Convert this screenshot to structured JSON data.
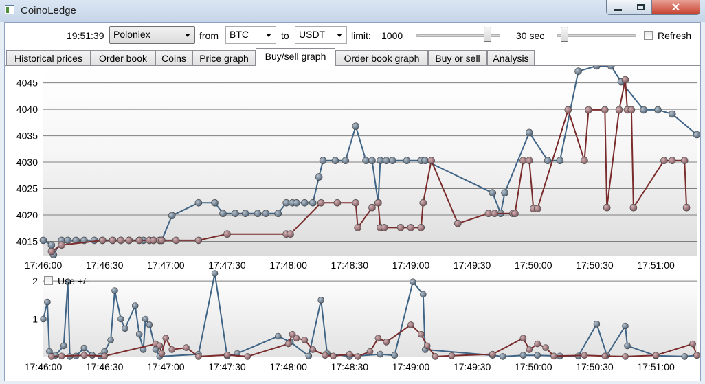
{
  "window": {
    "title": "CoinoLedge",
    "close_glyph": "✕"
  },
  "toolbar": {
    "time": "19:51:39",
    "exchange": "Poloniex",
    "from_label": "from",
    "from_value": "BTC",
    "to_label": "to",
    "to_value": "USDT",
    "limit_label": "limit:",
    "limit_value": "1000",
    "limit_slider_fraction": 0.88,
    "interval_value": "30 sec",
    "interval_slider_fraction": 0.05,
    "refresh_label": "Refresh",
    "refresh_checked": false
  },
  "tabs": [
    {
      "label": "Historical prices",
      "active": false
    },
    {
      "label": "Order book",
      "active": false
    },
    {
      "label": "Coins",
      "active": false
    },
    {
      "label": "Price graph",
      "active": false
    },
    {
      "label": "Buy/sell graph",
      "active": true
    },
    {
      "label": "Order book graph",
      "active": false
    },
    {
      "label": "Buy or sell",
      "active": false
    },
    {
      "label": "Analysis",
      "active": false
    }
  ],
  "colors": {
    "buy": "#3f6485",
    "sell": "#7a2b2b",
    "buy_point": "#6f8092",
    "sell_point": "#9a6f73"
  },
  "use_pm_label": "Use +/-",
  "use_pm_checked": false,
  "chart_data": [
    {
      "type": "line",
      "x_start": "17:46:00",
      "x_end": "17:51:20",
      "x_tick_labels": [
        "17:46:00",
        "17:46:30",
        "17:47:00",
        "17:47:30",
        "17:48:00",
        "17:48:30",
        "17:49:00",
        "17:49:30",
        "17:50:00",
        "17:50:30",
        "17:51:00"
      ],
      "y_ticks": [
        4015,
        4020,
        4025,
        4030,
        4035,
        4040,
        4045
      ],
      "ylim": [
        4012.2,
        4048.2
      ],
      "grid": true,
      "series": [
        {
          "color": "buy",
          "points": [
            [
              "17:46:00",
              4015.2
            ],
            [
              "17:46:04",
              4014.3
            ],
            [
              "17:46:05",
              4012.5
            ],
            [
              "17:46:09",
              4015.2
            ],
            [
              "17:46:12",
              4015.2
            ],
            [
              "17:46:16",
              4015.2
            ],
            [
              "17:46:20",
              4015.2
            ],
            [
              "17:46:25",
              4015.2
            ],
            [
              "17:46:29",
              4015.2
            ],
            [
              "17:46:34",
              4015.2
            ],
            [
              "17:46:38",
              4015.2
            ],
            [
              "17:46:42",
              4015.2
            ],
            [
              "17:46:47",
              4015.2
            ],
            [
              "17:46:49",
              4015.2
            ],
            [
              "17:46:52",
              4015.2
            ],
            [
              "17:46:54",
              4015.2
            ],
            [
              "17:46:57",
              4015.2
            ],
            [
              "17:46:58",
              4015.2
            ],
            [
              "17:47:03",
              4019.9
            ],
            [
              "17:47:16",
              4022.3
            ],
            [
              "17:47:24",
              4022.3
            ],
            [
              "17:47:28",
              4020.3
            ],
            [
              "17:47:34",
              4020.3
            ],
            [
              "17:47:39",
              4020.3
            ],
            [
              "17:47:45",
              4020.3
            ],
            [
              "17:47:49",
              4020.3
            ],
            [
              "17:47:55",
              4020.3
            ],
            [
              "17:47:59",
              4022.3
            ],
            [
              "17:48:02",
              4022.3
            ],
            [
              "17:48:04",
              4022.3
            ],
            [
              "17:48:08",
              4022.3
            ],
            [
              "17:48:12",
              4022.3
            ],
            [
              "17:48:15",
              4027.2
            ],
            [
              "17:48:17",
              4030.3
            ],
            [
              "17:48:23",
              4030.3
            ],
            [
              "17:48:28",
              4030.3
            ],
            [
              "17:48:33",
              4036.8
            ],
            [
              "17:48:38",
              4030.3
            ],
            [
              "17:48:41",
              4030.3
            ],
            [
              "17:48:44",
              4022.3
            ],
            [
              "17:48:45",
              4030.3
            ],
            [
              "17:48:48",
              4030.3
            ],
            [
              "17:48:51",
              4030.3
            ],
            [
              "17:48:58",
              4030.3
            ],
            [
              "17:49:05",
              4030.3
            ],
            [
              "17:49:07",
              4030.3
            ],
            [
              "17:49:40",
              4024.2
            ],
            [
              "17:49:44",
              4020.3
            ],
            [
              "17:49:46",
              4024.2
            ],
            [
              "17:49:58",
              4035.6
            ],
            [
              "17:50:07",
              4030.3
            ],
            [
              "17:50:13",
              4030.3
            ],
            [
              "17:50:22",
              4047.2
            ],
            [
              "17:50:31",
              4048.2
            ],
            [
              "17:50:38",
              4048.2
            ],
            [
              "17:50:43",
              4045.2
            ],
            [
              "17:50:54",
              4039.9
            ],
            [
              "17:51:01",
              4039.9
            ],
            [
              "17:51:08",
              4039.1
            ],
            [
              "17:51:20",
              4035.2
            ]
          ]
        },
        {
          "color": "sell",
          "points": [
            [
              "17:46:04",
              4013.1
            ],
            [
              "17:46:09",
              4014.3
            ],
            [
              "17:46:29",
              4015.2
            ],
            [
              "17:46:34",
              4015.2
            ],
            [
              "17:46:38",
              4015.2
            ],
            [
              "17:46:42",
              4015.2
            ],
            [
              "17:46:47",
              4015.2
            ],
            [
              "17:46:52",
              4015.2
            ],
            [
              "17:46:54",
              4015.2
            ],
            [
              "17:46:57",
              4015.2
            ],
            [
              "17:46:58",
              4015.2
            ],
            [
              "17:47:05",
              4015.2
            ],
            [
              "17:47:16",
              4015.2
            ],
            [
              "17:47:30",
              4016.4
            ],
            [
              "17:47:59",
              4016.4
            ],
            [
              "17:48:01",
              4016.4
            ],
            [
              "17:48:16",
              4022.3
            ],
            [
              "17:48:24",
              4022.3
            ],
            [
              "17:48:33",
              4022.3
            ],
            [
              "17:48:34",
              4017.6
            ],
            [
              "17:48:41",
              4021.4
            ],
            [
              "17:48:44",
              4022.3
            ],
            [
              "17:48:45",
              4017.6
            ],
            [
              "17:48:47",
              4017.6
            ],
            [
              "17:48:55",
              4017.6
            ],
            [
              "17:49:00",
              4017.6
            ],
            [
              "17:49:05",
              4017.6
            ],
            [
              "17:49:06",
              4022.3
            ],
            [
              "17:49:10",
              4030.3
            ],
            [
              "17:49:23",
              4018.4
            ],
            [
              "17:49:38",
              4020.3
            ],
            [
              "17:49:41",
              4020.3
            ],
            [
              "17:49:50",
              4020.3
            ],
            [
              "17:49:51",
              4020.3
            ],
            [
              "17:49:55",
              4030.3
            ],
            [
              "17:49:58",
              4030.3
            ],
            [
              "17:50:00",
              4021.2
            ],
            [
              "17:50:02",
              4021.2
            ],
            [
              "17:50:17",
              4039.9
            ],
            [
              "17:50:25",
              4030.3
            ],
            [
              "17:50:27",
              4039.9
            ],
            [
              "17:50:35",
              4039.9
            ],
            [
              "17:50:36",
              4021.4
            ],
            [
              "17:50:42",
              4039.9
            ],
            [
              "17:50:45",
              4045.6
            ],
            [
              "17:50:46",
              4039.9
            ],
            [
              "17:50:48",
              4039.9
            ],
            [
              "17:50:49",
              4021.4
            ],
            [
              "17:51:04",
              4030.3
            ],
            [
              "17:51:08",
              4030.3
            ],
            [
              "17:51:14",
              4030.3
            ],
            [
              "17:51:15",
              4021.4
            ]
          ]
        }
      ]
    },
    {
      "type": "line",
      "x_start": "17:46:00",
      "x_end": "17:51:20",
      "x_tick_labels": [
        "17:46:00",
        "17:46:30",
        "17:47:00",
        "17:47:30",
        "17:48:00",
        "17:48:30",
        "17:49:00",
        "17:49:30",
        "17:50:00",
        "17:50:30",
        "17:51:00"
      ],
      "y_ticks": [
        1,
        2
      ],
      "y_tick_labels": [
        "1",
        "2"
      ],
      "ylim": [
        0,
        2.2
      ],
      "grid": true,
      "series": [
        {
          "color": "buy",
          "points": [
            [
              "17:46:00",
              1
            ],
            [
              "17:46:02",
              1.45
            ],
            [
              "17:46:03",
              0.15
            ],
            [
              "17:46:06",
              0.05
            ],
            [
              "17:46:10",
              0.3
            ],
            [
              "17:46:12",
              1.98
            ],
            [
              "17:46:13",
              0.02
            ],
            [
              "17:46:16",
              0.03
            ],
            [
              "17:46:20",
              0.24
            ],
            [
              "17:46:24",
              0.05
            ],
            [
              "17:46:28",
              0.03
            ],
            [
              "17:46:30",
              0.15
            ],
            [
              "17:46:33",
              0.45
            ],
            [
              "17:46:35",
              1.75
            ],
            [
              "17:46:38",
              1
            ],
            [
              "17:46:40",
              0.75
            ],
            [
              "17:46:45",
              1.35
            ],
            [
              "17:46:47",
              0.6
            ],
            [
              "17:46:49",
              0.2
            ],
            [
              "17:46:50",
              1
            ],
            [
              "17:46:52",
              0.85
            ],
            [
              "17:46:55",
              0.2
            ],
            [
              "17:46:57",
              0.02
            ],
            [
              "17:47:16",
              0.08
            ],
            [
              "17:47:24",
              2.2
            ],
            [
              "17:47:30",
              0.03
            ],
            [
              "17:47:35",
              0.1
            ],
            [
              "17:47:55",
              0.55
            ],
            [
              "17:48:01",
              0.4
            ],
            [
              "17:48:10",
              0.03
            ],
            [
              "17:48:16",
              1.5
            ],
            [
              "17:48:19",
              0.1
            ],
            [
              "17:48:30",
              0.02
            ],
            [
              "17:48:45",
              0.08
            ],
            [
              "17:48:52",
              0.05
            ],
            [
              "17:49:01",
              1.98
            ],
            [
              "17:49:06",
              1.65
            ],
            [
              "17:49:07",
              0.2
            ],
            [
              "17:49:40",
              0.05
            ],
            [
              "17:49:45",
              0.02
            ],
            [
              "17:49:55",
              0.05
            ],
            [
              "17:50:02",
              0.05
            ],
            [
              "17:50:13",
              0.03
            ],
            [
              "17:50:22",
              0.03
            ],
            [
              "17:50:31",
              0.87
            ],
            [
              "17:50:36",
              0.05
            ],
            [
              "17:50:45",
              0.82
            ],
            [
              "17:50:46",
              0.3
            ],
            [
              "17:51:00",
              0.04
            ],
            [
              "17:51:14",
              0.02
            ],
            [
              "17:51:20",
              0.05
            ]
          ]
        },
        {
          "color": "sell",
          "points": [
            [
              "17:46:04",
              0.02
            ],
            [
              "17:46:09",
              0.03
            ],
            [
              "17:46:20",
              0.05
            ],
            [
              "17:46:30",
              0.03
            ],
            [
              "17:46:55",
              0.35
            ],
            [
              "17:46:57",
              0.3
            ],
            [
              "17:46:58",
              0.1
            ],
            [
              "17:47:00",
              0.5
            ],
            [
              "17:47:03",
              0.2
            ],
            [
              "17:47:10",
              0.25
            ],
            [
              "17:47:16",
              0.02
            ],
            [
              "17:47:30",
              0.06
            ],
            [
              "17:47:40",
              0.02
            ],
            [
              "17:48:00",
              0.35
            ],
            [
              "17:48:02",
              0.6
            ],
            [
              "17:48:04",
              0.5
            ],
            [
              "17:48:08",
              0.45
            ],
            [
              "17:48:12",
              0.2
            ],
            [
              "17:48:18",
              0.05
            ],
            [
              "17:48:22",
              0.03
            ],
            [
              "17:48:30",
              0.08
            ],
            [
              "17:48:34",
              0.02
            ],
            [
              "17:48:40",
              0.15
            ],
            [
              "17:48:44",
              0.5
            ],
            [
              "17:48:48",
              0.4
            ],
            [
              "17:49:00",
              0.85
            ],
            [
              "17:49:05",
              0.6
            ],
            [
              "17:49:08",
              0.3
            ],
            [
              "17:49:12",
              0.02
            ],
            [
              "17:49:20",
              0.04
            ],
            [
              "17:49:40",
              0.08
            ],
            [
              "17:49:55",
              0.5
            ],
            [
              "17:49:58",
              0.2
            ],
            [
              "17:50:02",
              0.35
            ],
            [
              "17:50:06",
              0.25
            ],
            [
              "17:50:10",
              0.03
            ],
            [
              "17:50:25",
              0.05
            ],
            [
              "17:50:35",
              0.03
            ],
            [
              "17:50:45",
              0.02
            ],
            [
              "17:51:00",
              0.05
            ],
            [
              "17:51:18",
              0.35
            ],
            [
              "17:51:20",
              0.05
            ]
          ]
        }
      ]
    }
  ]
}
